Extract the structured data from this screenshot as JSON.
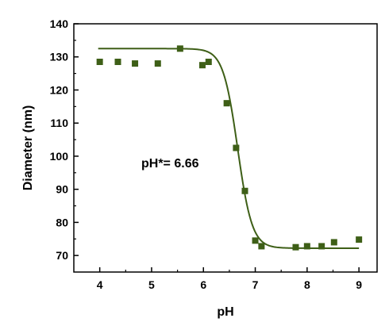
{
  "chart_data": {
    "type": "scatter",
    "xlabel": "pH",
    "ylabel": "Diameter (nm)",
    "xlim": [
      3.5,
      9.35
    ],
    "ylim": [
      65,
      140
    ],
    "xticks": [
      4,
      5,
      6,
      7,
      8,
      9
    ],
    "yticks": [
      70,
      80,
      90,
      100,
      110,
      120,
      130,
      140
    ],
    "grid": false,
    "annotation": "pH*= 6.66",
    "marker_color": "#3e5f17",
    "line_color": "#3e5f17",
    "series": [
      {
        "kind": "points",
        "x": [
          4.0,
          4.35,
          4.68,
          5.12,
          5.55,
          5.98,
          6.1,
          6.45,
          6.63,
          6.8,
          7.0,
          7.12,
          7.78,
          8.0,
          8.28,
          8.52,
          9.0
        ],
        "y": [
          128.5,
          128.5,
          128.0,
          128.0,
          132.5,
          127.5,
          128.5,
          116.0,
          102.5,
          89.5,
          74.5,
          72.8,
          72.5,
          72.8,
          72.8,
          74.0,
          74.8
        ]
      },
      {
        "kind": "fit",
        "model": "sigmoid",
        "x0": 6.66,
        "top": 132.5,
        "bottom": 72.2,
        "slope": 0.14,
        "x_range": [
          3.97,
          9.0
        ]
      }
    ]
  }
}
